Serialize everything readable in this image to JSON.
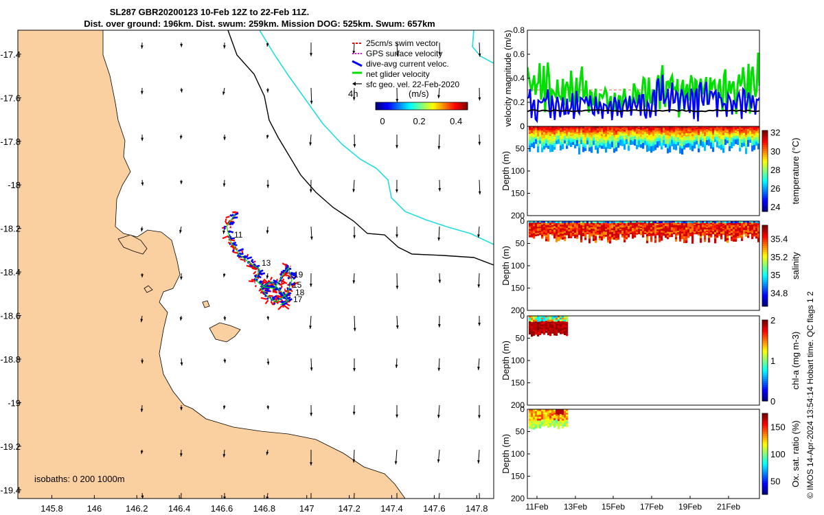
{
  "title": {
    "line1": "SL287 GBR20200123 10-Feb 12Z to 22-Feb 11Z.",
    "line2": "Dist. over ground: 196km. Dist. swum: 259km. Mission DOG: 525km. Swum: 657km"
  },
  "chart_data": [
    {
      "type": "scatter",
      "name": "map",
      "x_ticks": [
        "145.8",
        "146",
        "146.2",
        "146.4",
        "146.6",
        "146.8",
        "147",
        "147.2",
        "147.4",
        "147.6",
        "147.8"
      ],
      "y_ticks": [
        "-17.4",
        "-17.6",
        "-17.8",
        "-18",
        "-18.2",
        "-18.4",
        "-18.6",
        "-18.8",
        "-19",
        "-19.2",
        "-19.4"
      ],
      "xlim": [
        145.64,
        147.88
      ],
      "ylim": [
        -19.44,
        -17.29
      ],
      "legend": [
        "25cm/s swim vector",
        "GPS surface velocity",
        "dive-avg current veloc.",
        "net glider velocity",
        "sfc geo. vel. 22-Feb-2020"
      ],
      "legend_extra": "4h",
      "colorbar": {
        "label": "(m/s)",
        "ticks": [
          "0",
          "0.2",
          "0.4"
        ],
        "range": [
          0,
          0.5
        ]
      },
      "day_labels": [
        "11",
        "13",
        "19",
        "15",
        "18",
        "17"
      ],
      "isobaths_label": "isobaths: 0   200  1000m"
    },
    {
      "type": "line",
      "name": "velocity",
      "ylabel": "velocity magnitude (m/s)",
      "y_ticks": [
        "0",
        "0.2",
        "0.4",
        "0.6",
        "0.8"
      ],
      "ylim": [
        0,
        0.8
      ],
      "series": [
        {
          "name": "net glider velocity",
          "color": "#00e000",
          "peaks": [
            0.6,
            0.45,
            0.5,
            0.35,
            0.3,
            0.42,
            0.55,
            0.45,
            0.52,
            0.48,
            0.62
          ]
        },
        {
          "name": "dive-avg current veloc.",
          "color": "#0000ff",
          "peaks": [
            0.35,
            0.28,
            0.3,
            0.25,
            0.26,
            0.3,
            0.45,
            0.35,
            0.4,
            0.32,
            0.35
          ]
        },
        {
          "name": "mean",
          "color": "#000000",
          "value": 0.13
        }
      ],
      "reference": 0.25
    },
    {
      "type": "heatmap",
      "name": "temperature",
      "ylabel": "Depth (m)",
      "y_ticks": [
        "0",
        "50",
        "100",
        "150",
        "200"
      ],
      "colorbar_label": "temperature (°C)",
      "colorbar_ticks": [
        "24",
        "26",
        "28",
        "30",
        "32"
      ],
      "crange": [
        23.5,
        32.2
      ]
    },
    {
      "type": "heatmap",
      "name": "salinity",
      "ylabel": "Depth (m)",
      "y_ticks": [
        "0",
        "50",
        "100",
        "150",
        "200"
      ],
      "colorbar_label": "salinity",
      "colorbar_ticks": [
        "34.8",
        "35",
        "35.2",
        "35.4"
      ],
      "crange": [
        34.65,
        35.55
      ]
    },
    {
      "type": "heatmap",
      "name": "chla",
      "ylabel": "Depth (m)",
      "y_ticks": [
        "0",
        "50",
        "100",
        "150",
        "200"
      ],
      "colorbar_label": "chl-a (mg m-3)",
      "colorbar_ticks": [
        "0",
        "1",
        "2"
      ],
      "crange": [
        0,
        2
      ]
    },
    {
      "type": "heatmap",
      "name": "oxygen",
      "ylabel": "Depth (m)",
      "y_ticks": [
        "0",
        "50",
        "100",
        "150",
        "200"
      ],
      "colorbar_label": "Ox. sat. ratio (%)",
      "colorbar_ticks": [
        "50",
        "100",
        "150"
      ],
      "crange": [
        25,
        175
      ]
    }
  ],
  "date_ticks": [
    "11Feb",
    "13Feb",
    "15Feb",
    "17Feb",
    "19Feb",
    "21Feb"
  ],
  "credit": "© IMOS 14-Apr-2024 13:54:14 Hobart time. QC flags 1  2"
}
